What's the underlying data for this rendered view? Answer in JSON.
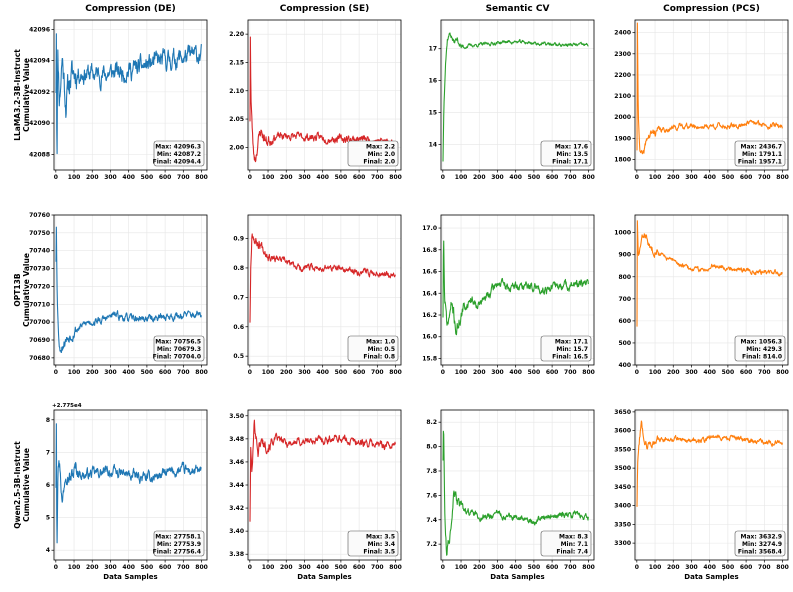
{
  "figure": {
    "column_titles": [
      "Compression (DE)",
      "Compression (SE)",
      "Semantic CV",
      "Compression (PCS)"
    ],
    "row_labels": [
      [
        "LLaMA3.2-3B-Instruct",
        "Cumulative Value"
      ],
      [
        "OPT13B",
        "Cumulative Value"
      ],
      [
        "Qwen2.5-3B-Instruct",
        "Cumulative Value"
      ]
    ],
    "xlabel": "Data Samples",
    "colors": {
      "DE": "#1f77b4",
      "SE": "#d62728",
      "CV": "#2ca02c",
      "PCS": "#ff7f0e"
    }
  },
  "chart_data": [
    {
      "type": "line",
      "row": 0,
      "col": 0,
      "title": "Compression (DE)",
      "ylabel": "LLaMA3.2-3B-Instruct Cumulative Value",
      "xlabel": "",
      "color": "#1f77b4",
      "seed": 11,
      "xlim": [
        -10,
        830
      ],
      "ylim": [
        42087.0,
        42096.6
      ],
      "xticks": [
        0,
        100,
        200,
        300,
        400,
        500,
        600,
        700,
        800
      ],
      "yticks": [
        42088,
        42090,
        42092,
        42094,
        42096
      ],
      "ytick_decimals": 0,
      "anchors": [
        [
          1,
          42092.3
        ],
        [
          3,
          42096.3
        ],
        [
          6,
          42087.2
        ],
        [
          10,
          42094.8
        ],
        [
          20,
          42091.6
        ],
        [
          35,
          42094.3
        ],
        [
          55,
          42091.4
        ],
        [
          80,
          42092.9
        ],
        [
          110,
          42093.3
        ],
        [
          150,
          42093.2
        ],
        [
          250,
          42093.1
        ],
        [
          350,
          42093.3
        ],
        [
          450,
          42093.5
        ],
        [
          550,
          42093.9
        ],
        [
          650,
          42094.1
        ],
        [
          750,
          42094.3
        ],
        [
          800,
          42094.4
        ]
      ],
      "noise": 0.45,
      "max": "42096.3",
      "min": "42087.2",
      "final": "42094.4",
      "offset_label": ""
    },
    {
      "type": "line",
      "row": 0,
      "col": 1,
      "title": "Compression (SE)",
      "ylabel": "",
      "xlabel": "",
      "color": "#d62728",
      "seed": 23,
      "xlim": [
        -10,
        830
      ],
      "ylim": [
        1.96,
        2.225
      ],
      "xticks": [
        0,
        100,
        200,
        300,
        400,
        500,
        600,
        700,
        800
      ],
      "yticks": [
        2.0,
        2.05,
        2.1,
        2.15,
        2.2
      ],
      "ytick_decimals": 2,
      "anchors": [
        [
          1,
          2.05
        ],
        [
          3,
          2.2
        ],
        [
          6,
          2.09
        ],
        [
          12,
          2.04
        ],
        [
          20,
          1.99
        ],
        [
          30,
          1.98
        ],
        [
          45,
          2.01
        ],
        [
          60,
          2.03
        ],
        [
          90,
          2.01
        ],
        [
          130,
          2.018
        ],
        [
          200,
          2.02
        ],
        [
          300,
          2.018
        ],
        [
          400,
          2.017
        ],
        [
          500,
          2.015
        ],
        [
          600,
          2.015
        ],
        [
          700,
          2.012
        ],
        [
          800,
          2.008
        ]
      ],
      "noise": 0.005,
      "max": "2.2",
      "min": "2.0",
      "final": "2.0",
      "offset_label": ""
    },
    {
      "type": "line",
      "row": 0,
      "col": 2,
      "title": "Semantic CV",
      "ylabel": "",
      "xlabel": "",
      "color": "#2ca02c",
      "seed": 37,
      "xlim": [
        -10,
        830
      ],
      "ylim": [
        13.2,
        17.9
      ],
      "xticks": [
        0,
        100,
        200,
        300,
        400,
        500,
        600,
        700,
        800
      ],
      "yticks": [
        14,
        15,
        16,
        17
      ],
      "ytick_decimals": 0,
      "anchors": [
        [
          1,
          13.5
        ],
        [
          6,
          15.3
        ],
        [
          15,
          16.6
        ],
        [
          25,
          17.3
        ],
        [
          40,
          17.5
        ],
        [
          60,
          17.2
        ],
        [
          80,
          17.3
        ],
        [
          100,
          17.05
        ],
        [
          150,
          17.1
        ],
        [
          250,
          17.15
        ],
        [
          350,
          17.22
        ],
        [
          450,
          17.2
        ],
        [
          550,
          17.15
        ],
        [
          650,
          17.12
        ],
        [
          800,
          17.12
        ]
      ],
      "noise": 0.04,
      "max": "17.6",
      "min": "13.5",
      "final": "17.1",
      "offset_label": ""
    },
    {
      "type": "line",
      "row": 0,
      "col": 3,
      "title": "Compression (PCS)",
      "ylabel": "",
      "xlabel": "",
      "color": "#ff7f0e",
      "seed": 41,
      "xlim": [
        -10,
        830
      ],
      "ylim": [
        1750,
        2460
      ],
      "xticks": [
        0,
        100,
        200,
        300,
        400,
        500,
        600,
        700,
        800
      ],
      "yticks": [
        1800,
        1900,
        2000,
        2100,
        2200,
        2300,
        2400
      ],
      "ytick_decimals": 0,
      "anchors": [
        [
          1,
          1850
        ],
        [
          3,
          2436
        ],
        [
          8,
          2000
        ],
        [
          18,
          1840
        ],
        [
          35,
          1810
        ],
        [
          55,
          1900
        ],
        [
          80,
          1920
        ],
        [
          110,
          1935
        ],
        [
          150,
          1940
        ],
        [
          250,
          1960
        ],
        [
          350,
          1955
        ],
        [
          450,
          1960
        ],
        [
          550,
          1955
        ],
        [
          600,
          1975
        ],
        [
          700,
          1965
        ],
        [
          800,
          1957
        ]
      ],
      "noise": 9,
      "max": "2436.7",
      "min": "1791.1",
      "final": "1957.1",
      "offset_label": ""
    },
    {
      "type": "line",
      "row": 1,
      "col": 0,
      "title": "",
      "ylabel": "OPT13B Cumulative Value",
      "xlabel": "",
      "color": "#1f77b4",
      "seed": 53,
      "xlim": [
        -10,
        830
      ],
      "ylim": [
        70676,
        70760
      ],
      "xticks": [
        0,
        100,
        200,
        300,
        400,
        500,
        600,
        700,
        800
      ],
      "yticks": [
        70680,
        70690,
        70700,
        70710,
        70720,
        70730,
        70740,
        70750,
        70760
      ],
      "ytick_decimals": 0,
      "anchors": [
        [
          1,
          70735
        ],
        [
          3,
          70756
        ],
        [
          8,
          70712
        ],
        [
          20,
          70685
        ],
        [
          40,
          70688
        ],
        [
          70,
          70692
        ],
        [
          110,
          70696
        ],
        [
          180,
          70700
        ],
        [
          250,
          70701
        ],
        [
          320,
          70704
        ],
        [
          400,
          70702
        ],
        [
          500,
          70702
        ],
        [
          600,
          70703
        ],
        [
          700,
          70704
        ],
        [
          800,
          70704
        ]
      ],
      "noise": 1.5,
      "max": "70756.5",
      "min": "70679.3",
      "final": "70704.0",
      "offset_label": ""
    },
    {
      "type": "line",
      "row": 1,
      "col": 1,
      "title": "",
      "ylabel": "",
      "xlabel": "",
      "color": "#d62728",
      "seed": 67,
      "xlim": [
        -10,
        830
      ],
      "ylim": [
        0.47,
        0.98
      ],
      "xticks": [
        0,
        100,
        200,
        300,
        400,
        500,
        600,
        700,
        800
      ],
      "yticks": [
        0.5,
        0.6,
        0.7,
        0.8,
        0.9
      ],
      "ytick_decimals": 1,
      "anchors": [
        [
          1,
          0.62
        ],
        [
          5,
          0.8
        ],
        [
          12,
          0.93
        ],
        [
          30,
          0.89
        ],
        [
          60,
          0.88
        ],
        [
          100,
          0.85
        ],
        [
          150,
          0.83
        ],
        [
          200,
          0.82
        ],
        [
          280,
          0.8
        ],
        [
          350,
          0.8
        ],
        [
          450,
          0.8
        ],
        [
          550,
          0.79
        ],
        [
          650,
          0.785
        ],
        [
          800,
          0.78
        ]
      ],
      "noise": 0.008,
      "max": "1.0",
      "min": "0.5",
      "final": "0.8",
      "offset_label": ""
    },
    {
      "type": "line",
      "row": 1,
      "col": 2,
      "title": "",
      "ylabel": "",
      "xlabel": "",
      "color": "#2ca02c",
      "seed": 71,
      "xlim": [
        -10,
        830
      ],
      "ylim": [
        15.74,
        17.12
      ],
      "xticks": [
        0,
        100,
        200,
        300,
        400,
        500,
        600,
        700,
        800
      ],
      "yticks": [
        15.8,
        16.0,
        16.2,
        16.4,
        16.6,
        16.8,
        17.0
      ],
      "ytick_decimals": 1,
      "anchors": [
        [
          1,
          16.2
        ],
        [
          4,
          17.0
        ],
        [
          10,
          16.3
        ],
        [
          25,
          16.1
        ],
        [
          50,
          16.3
        ],
        [
          75,
          16.05
        ],
        [
          100,
          16.2
        ],
        [
          150,
          16.35
        ],
        [
          200,
          16.3
        ],
        [
          260,
          16.4
        ],
        [
          300,
          16.5
        ],
        [
          360,
          16.45
        ],
        [
          450,
          16.47
        ],
        [
          550,
          16.44
        ],
        [
          650,
          16.47
        ],
        [
          800,
          16.48
        ]
      ],
      "noise": 0.03,
      "max": "17.1",
      "min": "15.7",
      "final": "16.5",
      "offset_label": ""
    },
    {
      "type": "line",
      "row": 1,
      "col": 3,
      "title": "",
      "ylabel": "",
      "xlabel": "",
      "color": "#ff7f0e",
      "seed": 83,
      "xlim": [
        -10,
        830
      ],
      "ylim": [
        400,
        1080
      ],
      "xticks": [
        0,
        100,
        200,
        300,
        400,
        500,
        600,
        700,
        800
      ],
      "yticks": [
        400,
        500,
        600,
        700,
        800,
        900,
        1000
      ],
      "ytick_decimals": 0,
      "anchors": [
        [
          1,
          580
        ],
        [
          3,
          1050
        ],
        [
          8,
          880
        ],
        [
          25,
          960
        ],
        [
          45,
          1000
        ],
        [
          70,
          930
        ],
        [
          110,
          920
        ],
        [
          150,
          890
        ],
        [
          200,
          870
        ],
        [
          280,
          840
        ],
        [
          350,
          830
        ],
        [
          400,
          840
        ],
        [
          420,
          855
        ],
        [
          500,
          840
        ],
        [
          600,
          830
        ],
        [
          700,
          822
        ],
        [
          800,
          814
        ]
      ],
      "noise": 8,
      "max": "1056.3",
      "min": "429.3",
      "final": "814.0",
      "offset_label": ""
    },
    {
      "type": "line",
      "row": 2,
      "col": 0,
      "title": "",
      "ylabel": "Qwen2.5-3B-Instruct Cumulative Value",
      "xlabel": "Data Samples",
      "color": "#1f77b4",
      "seed": 97,
      "xlim": [
        -10,
        830
      ],
      "ylim": [
        3.7,
        8.3
      ],
      "xticks": [
        0,
        100,
        200,
        300,
        400,
        500,
        600,
        700,
        800
      ],
      "yticks": [
        4,
        5,
        6,
        7,
        8
      ],
      "ytick_decimals": 0,
      "anchors": [
        [
          1,
          6.0
        ],
        [
          3,
          8.1
        ],
        [
          6,
          4.0
        ],
        [
          12,
          7.0
        ],
        [
          25,
          6.5
        ],
        [
          35,
          5.4
        ],
        [
          55,
          6.6
        ],
        [
          80,
          6.2
        ],
        [
          110,
          6.5
        ],
        [
          150,
          6.3
        ],
        [
          200,
          6.35
        ],
        [
          300,
          6.4
        ],
        [
          400,
          6.3
        ],
        [
          500,
          6.2
        ],
        [
          600,
          6.35
        ],
        [
          700,
          6.45
        ],
        [
          800,
          6.4
        ]
      ],
      "noise": 0.12,
      "max": "27758.1",
      "min": "27753.9",
      "final": "27756.4",
      "offset_label": "+2.775e4"
    },
    {
      "type": "line",
      "row": 2,
      "col": 1,
      "title": "",
      "ylabel": "",
      "xlabel": "Data Samples",
      "color": "#d62728",
      "seed": 101,
      "xlim": [
        -10,
        830
      ],
      "ylim": [
        3.375,
        3.505
      ],
      "xticks": [
        0,
        100,
        200,
        300,
        400,
        500,
        600,
        700,
        800
      ],
      "yticks": [
        3.38,
        3.4,
        3.42,
        3.44,
        3.46,
        3.48,
        3.5
      ],
      "ytick_decimals": 2,
      "anchors": [
        [
          1,
          3.41
        ],
        [
          5,
          3.47
        ],
        [
          12,
          3.45
        ],
        [
          25,
          3.495
        ],
        [
          45,
          3.47
        ],
        [
          60,
          3.478
        ],
        [
          100,
          3.475
        ],
        [
          150,
          3.48
        ],
        [
          200,
          3.476
        ],
        [
          300,
          3.478
        ],
        [
          400,
          3.479
        ],
        [
          480,
          3.481
        ],
        [
          560,
          3.478
        ],
        [
          650,
          3.476
        ],
        [
          800,
          3.474
        ]
      ],
      "noise": 0.0025,
      "max": "3.5",
      "min": "3.4",
      "final": "3.5",
      "offset_label": ""
    },
    {
      "type": "line",
      "row": 2,
      "col": 2,
      "title": "",
      "ylabel": "",
      "xlabel": "Data Samples",
      "color": "#2ca02c",
      "seed": 113,
      "xlim": [
        -10,
        830
      ],
      "ylim": [
        7.07,
        8.3
      ],
      "xticks": [
        0,
        100,
        200,
        300,
        400,
        500,
        600,
        700,
        800
      ],
      "yticks": [
        7.2,
        7.4,
        7.6,
        7.8,
        8.0,
        8.2
      ],
      "ytick_decimals": 1,
      "anchors": [
        [
          1,
          7.9
        ],
        [
          4,
          8.25
        ],
        [
          10,
          7.5
        ],
        [
          20,
          7.15
        ],
        [
          40,
          7.3
        ],
        [
          60,
          7.6
        ],
        [
          80,
          7.55
        ],
        [
          110,
          7.5
        ],
        [
          160,
          7.45
        ],
        [
          220,
          7.42
        ],
        [
          300,
          7.45
        ],
        [
          400,
          7.41
        ],
        [
          500,
          7.39
        ],
        [
          600,
          7.43
        ],
        [
          700,
          7.44
        ],
        [
          800,
          7.43
        ]
      ],
      "noise": 0.02,
      "max": "8.3",
      "min": "7.1",
      "final": "7.4",
      "offset_label": ""
    },
    {
      "type": "line",
      "row": 2,
      "col": 3,
      "title": "",
      "ylabel": "",
      "xlabel": "Data Samples",
      "color": "#ff7f0e",
      "seed": 127,
      "xlim": [
        -10,
        830
      ],
      "ylim": [
        3255,
        3655
      ],
      "xticks": [
        0,
        100,
        200,
        300,
        400,
        500,
        600,
        700,
        800
      ],
      "yticks": [
        3300,
        3350,
        3400,
        3450,
        3500,
        3550,
        3600,
        3650
      ],
      "ytick_decimals": 0,
      "anchors": [
        [
          1,
          3400
        ],
        [
          4,
          3500
        ],
        [
          10,
          3560
        ],
        [
          25,
          3620
        ],
        [
          40,
          3580
        ],
        [
          60,
          3560
        ],
        [
          90,
          3570
        ],
        [
          130,
          3575
        ],
        [
          200,
          3580
        ],
        [
          280,
          3575
        ],
        [
          350,
          3570
        ],
        [
          420,
          3585
        ],
        [
          500,
          3580
        ],
        [
          600,
          3575
        ],
        [
          700,
          3570
        ],
        [
          800,
          3568
        ]
      ],
      "noise": 5,
      "max": "3632.9",
      "min": "3274.9",
      "final": "3568.4",
      "offset_label": ""
    }
  ]
}
